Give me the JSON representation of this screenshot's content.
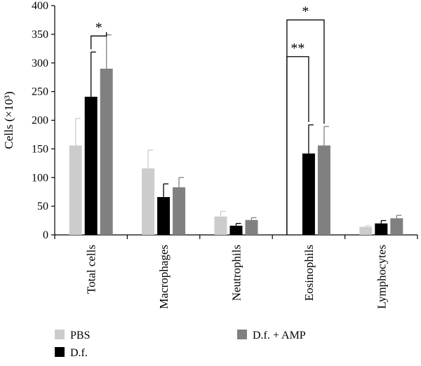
{
  "chart_data": {
    "type": "bar",
    "ylabel": "Cells (×10³)",
    "ylim": [
      0,
      400
    ],
    "yticks": [
      0,
      50,
      100,
      150,
      200,
      250,
      300,
      350,
      400
    ],
    "categories": [
      "Total cells",
      "Macrophages",
      "Neutrophils",
      "Eosinophils",
      "Lymphocytes"
    ],
    "series": [
      {
        "name": "PBS",
        "color": "#cccccc",
        "values": [
          156,
          116,
          32,
          0,
          14
        ],
        "errors": [
          47,
          32,
          9,
          0,
          2
        ]
      },
      {
        "name": "D.f.",
        "color": "#000000",
        "values": [
          241,
          66,
          16,
          142,
          20
        ],
        "errors": [
          78,
          23,
          4,
          50,
          5
        ]
      },
      {
        "name": "D.f. + AMP",
        "color": "#808080",
        "values": [
          290,
          83,
          26,
          156,
          29
        ],
        "errors": [
          59,
          17,
          4,
          33,
          5
        ]
      }
    ],
    "significance": [
      {
        "category": "Total cells",
        "from": "D.f.",
        "to": "D.f. + AMP",
        "label": "*"
      },
      {
        "category": "Eosinophils",
        "from": "PBS",
        "to": "D.f.",
        "label": "**"
      },
      {
        "category": "Eosinophils",
        "from": "PBS",
        "to": "D.f. + AMP",
        "label": "*"
      }
    ],
    "legend_position": "bottom",
    "grid": false
  }
}
